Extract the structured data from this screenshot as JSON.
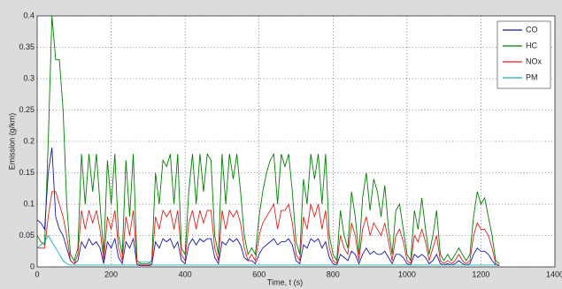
{
  "chart_data": {
    "type": "line",
    "xlabel": "Time, t (s)",
    "ylabel": "Emission (g/km)",
    "xlim": [
      0,
      1400
    ],
    "ylim": [
      0,
      0.4
    ],
    "xticks": [
      0,
      200,
      400,
      600,
      800,
      1000,
      1200,
      1400
    ],
    "yticks": [
      0,
      0.05,
      0.1,
      0.15,
      0.2,
      0.25,
      0.3,
      0.35,
      0.4
    ],
    "grid": true,
    "legend": "top-right",
    "x": [
      0,
      10,
      20,
      30,
      40,
      50,
      60,
      70,
      80,
      90,
      100,
      110,
      120,
      130,
      140,
      150,
      160,
      170,
      180,
      190,
      200,
      210,
      220,
      230,
      240,
      250,
      260,
      270,
      280,
      290,
      300,
      310,
      320,
      330,
      340,
      350,
      360,
      370,
      380,
      390,
      400,
      410,
      420,
      430,
      440,
      450,
      460,
      470,
      480,
      490,
      500,
      510,
      520,
      530,
      540,
      550,
      560,
      570,
      580,
      590,
      600,
      610,
      620,
      630,
      640,
      650,
      660,
      670,
      680,
      690,
      700,
      710,
      720,
      730,
      740,
      750,
      760,
      770,
      780,
      790,
      800,
      810,
      820,
      830,
      840,
      850,
      860,
      870,
      880,
      890,
      900,
      910,
      920,
      930,
      940,
      950,
      960,
      970,
      980,
      990,
      1000,
      1010,
      1020,
      1030,
      1040,
      1050,
      1060,
      1070,
      1080,
      1090,
      1100,
      1110,
      1120,
      1130,
      1140,
      1150,
      1160,
      1170,
      1180,
      1190,
      1200,
      1210,
      1220,
      1230,
      1240,
      1250
    ],
    "series": [
      {
        "name": "CO",
        "color": "#1a1aa6",
        "values": [
          0.075,
          0.07,
          0.06,
          0.15,
          0.19,
          0.08,
          0.06,
          0.05,
          0.03,
          0.01,
          0.005,
          0.01,
          0.04,
          0.03,
          0.045,
          0.035,
          0.04,
          0.03,
          0.005,
          0.04,
          0.03,
          0.045,
          0.015,
          0.005,
          0.04,
          0.03,
          0.045,
          0.003,
          0.002,
          0.002,
          0.002,
          0.003,
          0.04,
          0.03,
          0.045,
          0.04,
          0.045,
          0.03,
          0.04,
          0.01,
          0.005,
          0.035,
          0.045,
          0.035,
          0.045,
          0.04,
          0.045,
          0.045,
          0.015,
          0.005,
          0.04,
          0.035,
          0.045,
          0.04,
          0.045,
          0.035,
          0.015,
          0.01,
          0.01,
          0.005,
          0.02,
          0.03,
          0.035,
          0.04,
          0.045,
          0.035,
          0.04,
          0.04,
          0.045,
          0.035,
          0.01,
          0.005,
          0.035,
          0.03,
          0.045,
          0.04,
          0.045,
          0.03,
          0.04,
          0.015,
          0.005,
          0.003,
          0.02,
          0.015,
          0.01,
          0.025,
          0.02,
          0.005,
          0.02,
          0.03,
          0.02,
          0.025,
          0.02,
          0.02,
          0.025,
          0.015,
          0.005,
          0.02,
          0.02,
          0.015,
          0.005,
          0.003,
          0.02,
          0.015,
          0.02,
          0.015,
          0.005,
          0.01,
          0.02,
          0.005,
          0.003,
          0.005,
          0.003,
          0.005,
          0.01,
          0.005,
          0.003,
          0.005,
          0.02,
          0.03,
          0.025,
          0.025,
          0.02,
          0.01,
          0.003,
          0.002
        ]
      },
      {
        "name": "HC",
        "color": "#008000",
        "values": [
          0.05,
          0.04,
          0.035,
          0.2,
          0.4,
          0.33,
          0.33,
          0.25,
          0.1,
          0.02,
          0.01,
          0.03,
          0.18,
          0.1,
          0.18,
          0.12,
          0.18,
          0.1,
          0.02,
          0.17,
          0.1,
          0.18,
          0.05,
          0.02,
          0.17,
          0.08,
          0.18,
          0.01,
          0.005,
          0.005,
          0.005,
          0.01,
          0.15,
          0.1,
          0.17,
          0.16,
          0.18,
          0.1,
          0.18,
          0.03,
          0.02,
          0.12,
          0.18,
          0.1,
          0.18,
          0.12,
          0.18,
          0.17,
          0.05,
          0.02,
          0.18,
          0.1,
          0.18,
          0.14,
          0.18,
          0.12,
          0.05,
          0.02,
          0.03,
          0.02,
          0.08,
          0.12,
          0.15,
          0.17,
          0.18,
          0.1,
          0.18,
          0.16,
          0.18,
          0.12,
          0.04,
          0.02,
          0.14,
          0.1,
          0.18,
          0.14,
          0.18,
          0.1,
          0.18,
          0.05,
          0.02,
          0.01,
          0.09,
          0.05,
          0.03,
          0.12,
          0.08,
          0.02,
          0.11,
          0.15,
          0.09,
          0.14,
          0.12,
          0.08,
          0.13,
          0.06,
          0.02,
          0.09,
          0.1,
          0.06,
          0.02,
          0.01,
          0.09,
          0.06,
          0.11,
          0.06,
          0.02,
          0.05,
          0.09,
          0.02,
          0.01,
          0.02,
          0.01,
          0.02,
          0.03,
          0.02,
          0.01,
          0.02,
          0.08,
          0.12,
          0.1,
          0.11,
          0.08,
          0.05,
          0.01,
          0.005
        ]
      },
      {
        "name": "NOx",
        "color": "#e0201b",
        "values": [
          0.03,
          0.03,
          0.03,
          0.08,
          0.12,
          0.12,
          0.1,
          0.08,
          0.05,
          0.01,
          0.005,
          0.02,
          0.09,
          0.06,
          0.09,
          0.07,
          0.09,
          0.06,
          0.01,
          0.08,
          0.06,
          0.09,
          0.03,
          0.01,
          0.08,
          0.05,
          0.09,
          0.005,
          0.003,
          0.003,
          0.003,
          0.005,
          0.08,
          0.06,
          0.09,
          0.08,
          0.09,
          0.06,
          0.09,
          0.02,
          0.01,
          0.07,
          0.09,
          0.06,
          0.09,
          0.07,
          0.09,
          0.09,
          0.03,
          0.01,
          0.09,
          0.06,
          0.09,
          0.08,
          0.09,
          0.07,
          0.03,
          0.01,
          0.02,
          0.01,
          0.05,
          0.07,
          0.08,
          0.09,
          0.1,
          0.06,
          0.09,
          0.09,
          0.1,
          0.07,
          0.02,
          0.01,
          0.08,
          0.06,
          0.1,
          0.08,
          0.1,
          0.06,
          0.09,
          0.03,
          0.01,
          0.005,
          0.05,
          0.03,
          0.02,
          0.07,
          0.05,
          0.01,
          0.06,
          0.08,
          0.05,
          0.07,
          0.06,
          0.05,
          0.07,
          0.04,
          0.01,
          0.05,
          0.06,
          0.04,
          0.01,
          0.005,
          0.05,
          0.04,
          0.06,
          0.04,
          0.01,
          0.03,
          0.05,
          0.01,
          0.005,
          0.01,
          0.005,
          0.01,
          0.02,
          0.01,
          0.005,
          0.01,
          0.05,
          0.07,
          0.06,
          0.06,
          0.05,
          0.03,
          0.005,
          0.003
        ]
      },
      {
        "name": "PM",
        "color": "#1fb0b0",
        "values": [
          0.03,
          0.035,
          0.04,
          0.05,
          0.04,
          0.03,
          0.02,
          0.01,
          0.005,
          0.003,
          0.003,
          0.003,
          0.003,
          0.003,
          0.003,
          0.003,
          0.003,
          0.003,
          0.003,
          0.003,
          0.003,
          0.003,
          0.003,
          0.003,
          0.003,
          0.003,
          0.003,
          0.003,
          0.008,
          0.008,
          0.008,
          0.003,
          0.003,
          0.003,
          0.003,
          0.003,
          0.003,
          0.003,
          0.003,
          0.003,
          0.003,
          0.003,
          0.003,
          0.003,
          0.003,
          0.003,
          0.003,
          0.003,
          0.003,
          0.003,
          0.003,
          0.003,
          0.003,
          0.003,
          0.003,
          0.003,
          0.003,
          0.003,
          0.003,
          0.003,
          0.003,
          0.003,
          0.003,
          0.003,
          0.003,
          0.003,
          0.003,
          0.003,
          0.003,
          0.003,
          0.003,
          0.003,
          0.003,
          0.003,
          0.003,
          0.003,
          0.003,
          0.003,
          0.003,
          0.003,
          0.003,
          0.003,
          0.003,
          0.003,
          0.003,
          0.003,
          0.003,
          0.003,
          0.003,
          0.003,
          0.003,
          0.003,
          0.003,
          0.003,
          0.003,
          0.003,
          0.003,
          0.003,
          0.003,
          0.003,
          0.003,
          0.003,
          0.003,
          0.003,
          0.003,
          0.003,
          0.003,
          0.003,
          0.003,
          0.003,
          0.003,
          0.003,
          0.003,
          0.003,
          0.003,
          0.003,
          0.003,
          0.003,
          0.003,
          0.003,
          0.003,
          0.003,
          0.003,
          0.003,
          0.003,
          0.003
        ]
      }
    ]
  }
}
